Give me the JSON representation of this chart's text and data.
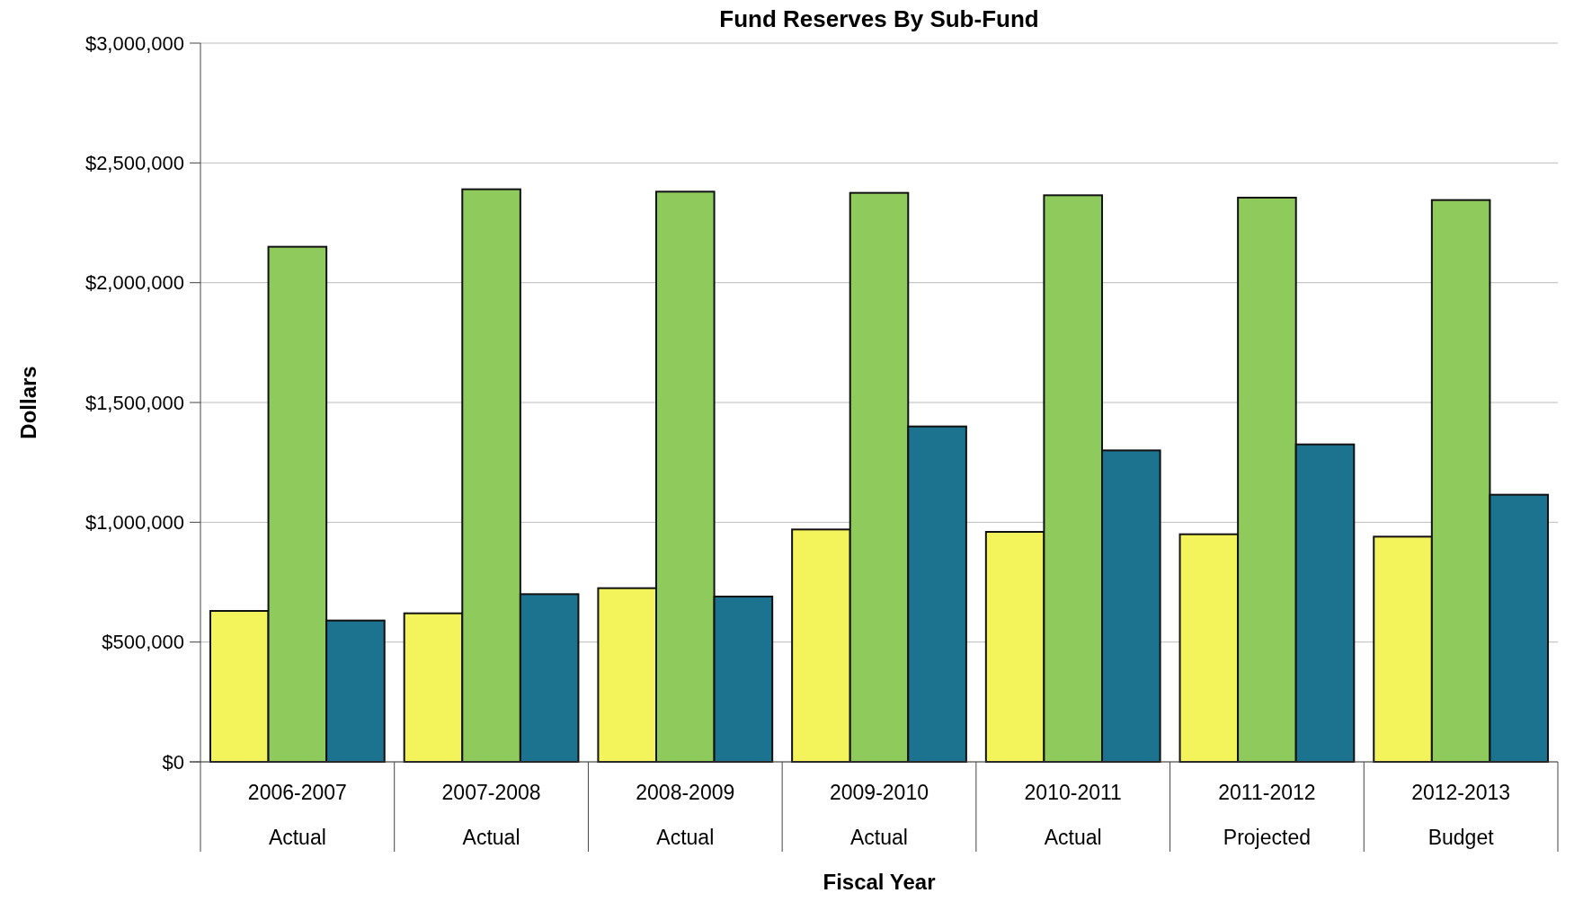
{
  "chart_data": {
    "type": "bar",
    "title": "Fund Reserves By Sub-Fund",
    "xlabel": "Fiscal Year",
    "ylabel": "Dollars",
    "categories": [
      "2006-2007\nActual",
      "2007-2008\nActual",
      "2008-2009\nActual",
      "2009-2010\nActual",
      "2010-2011\nActual",
      "2011-2012\nProjected",
      "2012-2013\nBudget"
    ],
    "series": [
      {
        "color": "#f3f35c",
        "values": [
          630000,
          620000,
          725000,
          970000,
          960000,
          950000,
          940000
        ]
      },
      {
        "color": "#8fcb5c",
        "values": [
          2150000,
          2390000,
          2380000,
          2375000,
          2365000,
          2355000,
          2345000
        ]
      },
      {
        "color": "#1b7390",
        "values": [
          590000,
          700000,
          690000,
          1400000,
          1300000,
          1325000,
          1115000
        ]
      }
    ],
    "ylim": [
      0,
      3000000
    ],
    "yticks": [
      {
        "value": 0,
        "label": "$0"
      },
      {
        "value": 500000,
        "label": "$500,000"
      },
      {
        "value": 1000000,
        "label": "$1,000,000"
      },
      {
        "value": 1500000,
        "label": "$1,500,000"
      },
      {
        "value": 2000000,
        "label": "$2,000,000"
      },
      {
        "value": 2500000,
        "label": "$2,500,000"
      },
      {
        "value": 3000000,
        "label": "$3,000,000"
      }
    ],
    "grid": "y"
  }
}
